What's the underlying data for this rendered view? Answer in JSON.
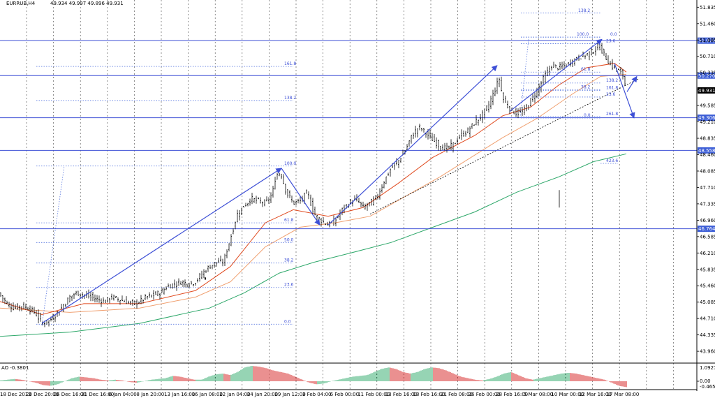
{
  "header": {
    "symbol": "EURRUB,H4",
    "ohlc": "49.934 49.997 49.896 49.931"
  },
  "indicator": {
    "label": "AO -0.3801",
    "scale": [
      "1.0927",
      "0.00",
      "-0.4654"
    ]
  },
  "colors": {
    "candles": "#000000",
    "ema_fast": "#e04a1f",
    "ema_mid": "#f0a070",
    "ema_slow": "#2ea86a",
    "levels": "#3d4fd6",
    "fib": "#5a78e0",
    "ao_up": "#2ea86a",
    "ao_down": "#d62020",
    "price_tag": "#000000",
    "level_tag": "#3d5ed6"
  },
  "chart_data": {
    "type": "candlestick",
    "y_axis_ticks": [
      "51.835",
      "51.460",
      "51.085",
      "50.710",
      "50.335",
      "49.960",
      "49.585",
      "49.210",
      "48.835",
      "48.460",
      "48.085",
      "47.710",
      "47.335",
      "46.960",
      "46.585",
      "46.210",
      "45.835",
      "45.460",
      "45.085",
      "44.710",
      "44.335",
      "43.960"
    ],
    "ylim": [
      43.69,
      52.0
    ],
    "x_axis_ticks": [
      "18 Dec 2013",
      "20 Dec 20:00",
      "26 Dec 16:00",
      "31 Dec 16:00",
      "6 Jan 04:00",
      "8 Jan 20:00",
      "13 Jan 16:00",
      "16 Jan 08:00",
      "22 Jan 04:00",
      "24 Jan 20:00",
      "29 Jan 12:00",
      "3 Feb 04:00",
      "6 Feb 00:00",
      "11 Feb 00:00",
      "13 Feb 16:00",
      "18 Feb 16:00",
      "21 Feb 08:00",
      "26 Feb 00:00",
      "28 Feb 16:00",
      "5 Mar 08:00",
      "10 Mar 00:00",
      "12 Mar 16:00",
      "17 Mar 08:00"
    ],
    "current_price": "49.931",
    "horizontal_levels": [
      {
        "label": "51.070",
        "value": 51.07
      },
      {
        "label": "50.270",
        "value": 50.27
      },
      {
        "label": "49.306",
        "value": 49.306
      },
      {
        "label": "48.558",
        "value": 48.558
      },
      {
        "label": "46.764",
        "value": 46.764
      }
    ],
    "close_path": [
      [
        0,
        45.25
      ],
      [
        10,
        45.05
      ],
      [
        20,
        44.95
      ],
      [
        30,
        45.0
      ],
      [
        40,
        44.95
      ],
      [
        50,
        44.85
      ],
      [
        60,
        44.6
      ],
      [
        70,
        44.65
      ],
      [
        80,
        44.8
      ],
      [
        90,
        45.0
      ],
      [
        100,
        45.2
      ],
      [
        110,
        45.3
      ],
      [
        120,
        45.25
      ],
      [
        130,
        45.2
      ],
      [
        140,
        45.15
      ],
      [
        150,
        45.1
      ],
      [
        160,
        45.2
      ],
      [
        170,
        45.15
      ],
      [
        180,
        45.1
      ],
      [
        190,
        45.05
      ],
      [
        200,
        45.1
      ],
      [
        210,
        45.2
      ],
      [
        220,
        45.25
      ],
      [
        230,
        45.3
      ],
      [
        240,
        45.45
      ],
      [
        250,
        45.5
      ],
      [
        260,
        45.55
      ],
      [
        270,
        45.5
      ],
      [
        280,
        45.55
      ],
      [
        290,
        45.75
      ],
      [
        300,
        45.9
      ],
      [
        310,
        46.0
      ],
      [
        320,
        46.0
      ],
      [
        330,
        46.55
      ],
      [
        340,
        47.1
      ],
      [
        350,
        47.3
      ],
      [
        360,
        47.45
      ],
      [
        370,
        47.4
      ],
      [
        380,
        47.35
      ],
      [
        390,
        47.55
      ],
      [
        395,
        48.0
      ],
      [
        402,
        48.05
      ],
      [
        410,
        47.6
      ],
      [
        420,
        47.35
      ],
      [
        430,
        47.4
      ],
      [
        440,
        47.6
      ],
      [
        450,
        47.1
      ],
      [
        460,
        46.95
      ],
      [
        470,
        46.85
      ],
      [
        480,
        46.95
      ],
      [
        490,
        47.2
      ],
      [
        500,
        47.35
      ],
      [
        510,
        47.45
      ],
      [
        520,
        47.25
      ],
      [
        530,
        47.35
      ],
      [
        540,
        47.5
      ],
      [
        550,
        47.85
      ],
      [
        560,
        48.15
      ],
      [
        570,
        48.3
      ],
      [
        580,
        48.55
      ],
      [
        590,
        48.9
      ],
      [
        600,
        49.1
      ],
      [
        610,
        48.95
      ],
      [
        620,
        48.8
      ],
      [
        630,
        48.65
      ],
      [
        640,
        48.6
      ],
      [
        650,
        48.7
      ],
      [
        660,
        48.9
      ],
      [
        670,
        49.0
      ],
      [
        680,
        49.2
      ],
      [
        690,
        49.35
      ],
      [
        700,
        49.6
      ],
      [
        710,
        50.0
      ],
      [
        715,
        50.2
      ],
      [
        720,
        49.75
      ],
      [
        730,
        49.5
      ],
      [
        740,
        49.4
      ],
      [
        750,
        49.45
      ],
      [
        760,
        49.7
      ],
      [
        770,
        49.95
      ],
      [
        780,
        50.25
      ],
      [
        790,
        50.5
      ],
      [
        800,
        50.45
      ],
      [
        810,
        50.5
      ],
      [
        820,
        50.6
      ],
      [
        830,
        50.7
      ],
      [
        840,
        50.75
      ],
      [
        850,
        50.85
      ],
      [
        858,
        50.95
      ],
      [
        865,
        50.75
      ],
      [
        875,
        50.5
      ],
      [
        885,
        50.4
      ],
      [
        893,
        50.25
      ],
      [
        897,
        49.93
      ]
    ],
    "ema_fast_path": [
      [
        0,
        45.1
      ],
      [
        60,
        44.8
      ],
      [
        120,
        45.05
      ],
      [
        200,
        45.05
      ],
      [
        280,
        45.35
      ],
      [
        330,
        45.9
      ],
      [
        380,
        46.9
      ],
      [
        420,
        47.2
      ],
      [
        470,
        47.05
      ],
      [
        520,
        47.25
      ],
      [
        570,
        47.8
      ],
      [
        620,
        48.4
      ],
      [
        680,
        48.9
      ],
      [
        720,
        49.35
      ],
      [
        760,
        49.55
      ],
      [
        800,
        50.05
      ],
      [
        840,
        50.45
      ],
      [
        880,
        50.55
      ],
      [
        897,
        50.35
      ]
    ],
    "ema_mid_path": [
      [
        0,
        44.95
      ],
      [
        100,
        44.85
      ],
      [
        200,
        44.95
      ],
      [
        280,
        45.2
      ],
      [
        330,
        45.55
      ],
      [
        380,
        46.35
      ],
      [
        430,
        46.8
      ],
      [
        480,
        46.9
      ],
      [
        530,
        47.05
      ],
      [
        580,
        47.5
      ],
      [
        630,
        47.95
      ],
      [
        680,
        48.45
      ],
      [
        720,
        48.85
      ],
      [
        770,
        49.3
      ],
      [
        820,
        49.85
      ],
      [
        860,
        50.25
      ],
      [
        897,
        50.3
      ]
    ],
    "ema_slow_path": [
      [
        0,
        44.3
      ],
      [
        100,
        44.4
      ],
      [
        200,
        44.6
      ],
      [
        300,
        44.95
      ],
      [
        350,
        45.3
      ],
      [
        400,
        45.75
      ],
      [
        450,
        46.0
      ],
      [
        500,
        46.2
      ],
      [
        560,
        46.45
      ],
      [
        620,
        46.8
      ],
      [
        680,
        47.15
      ],
      [
        740,
        47.6
      ],
      [
        800,
        47.95
      ],
      [
        850,
        48.3
      ],
      [
        897,
        48.48
      ]
    ],
    "ao_path": [
      0.05,
      0.1,
      0.15,
      0.1,
      0.0,
      -0.1,
      -0.25,
      -0.3,
      -0.2,
      0.0,
      0.2,
      0.3,
      0.25,
      0.2,
      0.1,
      0.05,
      0.1,
      0.05,
      -0.05,
      -0.1,
      0.0,
      0.1,
      0.15,
      0.2,
      0.35,
      0.3,
      0.2,
      0.1,
      0.1,
      0.3,
      0.45,
      0.5,
      0.4,
      0.6,
      0.9,
      1.0,
      0.95,
      0.85,
      0.7,
      0.6,
      0.5,
      0.3,
      0.1,
      -0.1,
      -0.2,
      -0.15,
      0.0,
      0.1,
      0.2,
      0.3,
      0.35,
      0.4,
      0.6,
      0.8,
      0.9,
      0.8,
      0.6,
      0.5,
      0.6,
      0.8,
      0.9,
      0.85,
      0.7,
      0.5,
      0.3,
      0.2,
      0.1,
      0.05,
      0.15,
      0.3,
      0.5,
      0.6,
      0.4,
      0.2,
      0.1,
      0.2,
      0.3,
      0.4,
      0.5,
      0.55,
      0.5,
      0.4,
      0.3,
      0.2,
      0.1,
      -0.1,
      -0.3,
      -0.38
    ],
    "fib_left": [
      {
        "label": "161.8",
        "value": 50.48
      },
      {
        "label": "138.2",
        "value": 49.7
      },
      {
        "label": "100.0",
        "value": 48.2
      },
      {
        "label": "61.8",
        "value": 46.9
      },
      {
        "label": "50.0",
        "value": 46.45
      },
      {
        "label": "38.2",
        "value": 45.98
      },
      {
        "label": "23.6",
        "value": 45.42
      },
      {
        "label": "0.0",
        "value": 44.58
      }
    ],
    "fib_right": [
      {
        "label": "138.2",
        "value": 51.7
      },
      {
        "label": "100.0",
        "value": 51.15
      },
      {
        "label": "0.0",
        "value": 51.15
      },
      {
        "label": "23.6",
        "value": 51.0
      },
      {
        "label": "61.8",
        "value": 50.35
      },
      {
        "label": "138.2",
        "value": 50.1
      },
      {
        "label": "38.2",
        "value": 49.95
      },
      {
        "label": "161.8",
        "value": 49.93
      },
      {
        "label": "23.6",
        "value": 49.78
      },
      {
        "label": "0.0",
        "value": 49.3
      },
      {
        "label": "261.8",
        "value": 49.33
      },
      {
        "label": "423.6",
        "value": 48.26
      }
    ]
  }
}
